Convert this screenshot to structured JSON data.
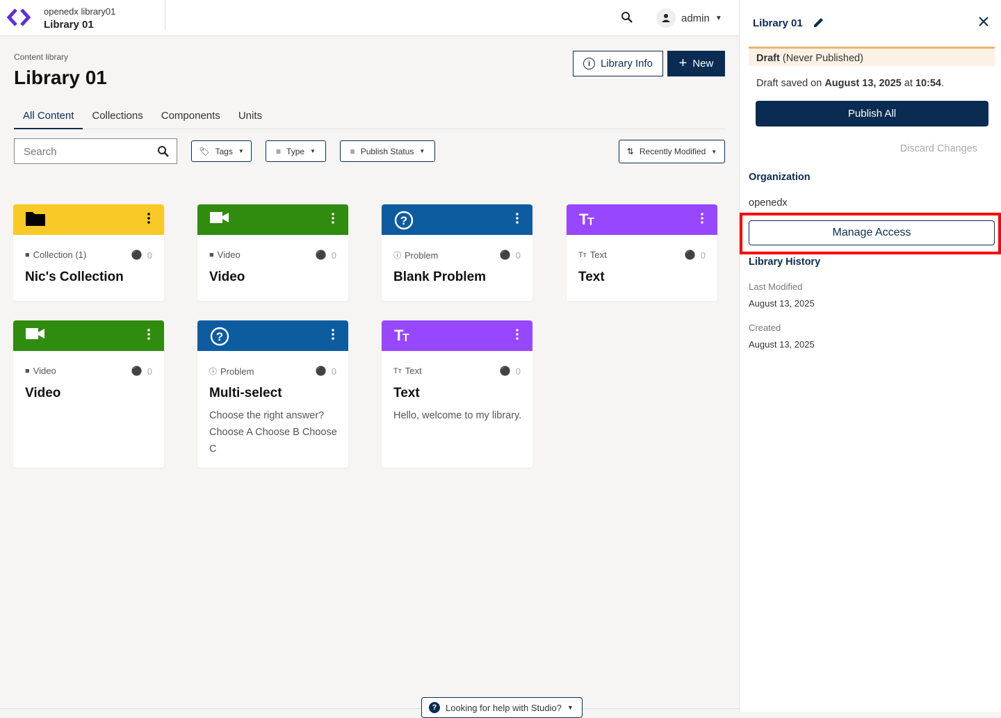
{
  "header": {
    "org_library": "openedx library01",
    "library_name": "Library 01",
    "user": "admin"
  },
  "page": {
    "breadcrumb": "Content library",
    "title": "Library 01",
    "library_info_label": "Library Info",
    "new_label": "New"
  },
  "tabs": [
    {
      "label": "All Content",
      "active": true
    },
    {
      "label": "Collections"
    },
    {
      "label": "Components"
    },
    {
      "label": "Units"
    }
  ],
  "filters": {
    "search_placeholder": "Search",
    "tags": "Tags",
    "type": "Type",
    "publish_status": "Publish Status",
    "sort": "Recently Modified"
  },
  "colors": {
    "collection": "#f9c927",
    "video": "#2f8c0e",
    "problem": "#0d5ca0",
    "text": "#9747ff",
    "primary": "#0a2c52"
  },
  "cards": [
    {
      "kind": "collection",
      "type_label": "Collection (1)",
      "tags": "0",
      "title": "Nic's Collection",
      "desc": ""
    },
    {
      "kind": "video",
      "type_label": "Video",
      "tags": "0",
      "title": "Video",
      "desc": ""
    },
    {
      "kind": "problem",
      "type_label": "Problem",
      "tags": "0",
      "title": "Blank Problem",
      "desc": ""
    },
    {
      "kind": "text",
      "type_label": "Text",
      "tags": "0",
      "title": "Text",
      "desc": ""
    },
    {
      "kind": "video",
      "type_label": "Video",
      "tags": "0",
      "title": "Video",
      "desc": ""
    },
    {
      "kind": "problem",
      "type_label": "Problem",
      "tags": "0",
      "title": "Multi-select",
      "desc": "Choose the right answer? Choose A Choose B Choose C"
    },
    {
      "kind": "text",
      "type_label": "Text",
      "tags": "0",
      "title": "Text",
      "desc": "Hello, welcome to my library."
    }
  ],
  "panel": {
    "title": "Library 01",
    "draft_bold": "Draft",
    "draft_rest": " (Never Published)",
    "saved_prefix": "Draft saved on ",
    "saved_date": "August 13, 2025",
    "saved_mid": " at ",
    "saved_time": "10:54",
    "saved_end": ".",
    "publish_all": "Publish All",
    "discard": "Discard Changes",
    "org_heading": "Organization",
    "org": "openedx",
    "manage_access": "Manage Access",
    "history_heading": "Library History",
    "last_modified_label": "Last Modified",
    "last_modified": "August 13, 2025",
    "created_label": "Created",
    "created": "August 13, 2025"
  },
  "help": {
    "label": "Looking for help with Studio?"
  }
}
